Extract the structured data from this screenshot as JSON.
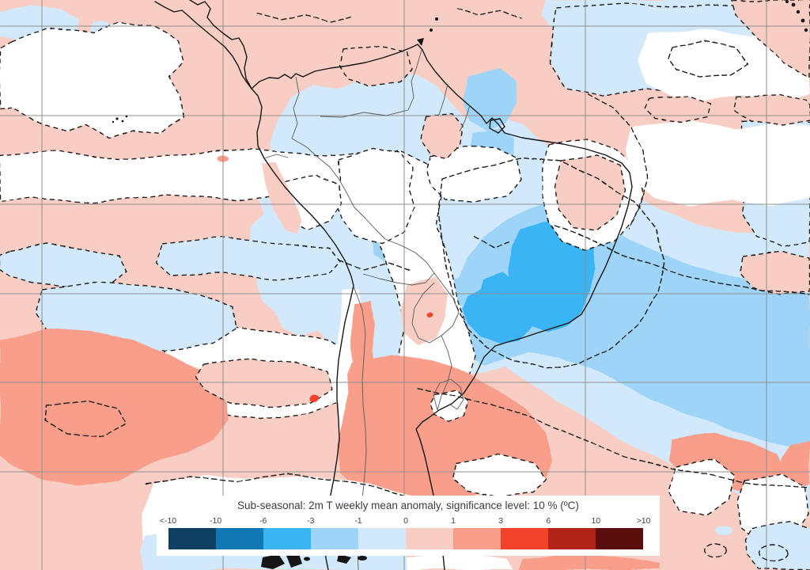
{
  "legend": {
    "title": "Sub-seasonal: 2m T weekly mean anomaly, significance level: 10 % (ºC)",
    "ticks": [
      "<-10",
      "-10",
      "-6",
      "-3",
      "-1",
      "0",
      "1",
      "3",
      "6",
      "10",
      ">10"
    ],
    "colors": [
      "#0f3f61",
      "#1178b4",
      "#3ab4f3",
      "#9ed4f7",
      "#d1e9fa",
      "#f8cdc4",
      "#f89e8b",
      "#f2432a",
      "#b22317",
      "#5a0f0e"
    ]
  },
  "chart_data": {
    "type": "heatmap",
    "title": "Sub-seasonal: 2m T weekly mean anomaly, significance level: 10 % (ºC)",
    "units": "ºC",
    "scale_breaks": [
      -10,
      -6,
      -3,
      -1,
      0,
      1,
      3,
      6,
      10
    ],
    "scale_labels": [
      "<-10",
      "-10",
      "-6",
      "-3",
      "-1",
      "0",
      "1",
      "3",
      "6",
      "10",
      ">10"
    ],
    "scale_colors": [
      "#0f3f61",
      "#1178b4",
      "#3ab4f3",
      "#9ed4f7",
      "#d1e9fa",
      "#f8cdc4",
      "#f89e8b",
      "#f2432a",
      "#b22317",
      "#5a0f0e"
    ],
    "legend_position": "bottom-center",
    "grid": true,
    "map_region": "South America and adjacent Pacific / Atlantic oceans",
    "regions": [
      {
        "area": "eastern Brazil interior (Bahia / Minas Gerais)",
        "anomaly_c": "-6 to -3"
      },
      {
        "area": "southeast Brazil coast and southwest Atlantic band",
        "anomaly_c": "-3 to -1"
      },
      {
        "area": "Amazon basin, Guyanas and tropical Atlantic",
        "anomaly_c": "-1 to 0"
      },
      {
        "area": "Argentina, Uruguay and Pampas",
        "anomaly_c": "1 to 3"
      },
      {
        "area": "southeast Pacific blob west of Chile",
        "anomaly_c": "1 to 3"
      },
      {
        "area": "most tropical Pacific, Caribbean and remaining ocean",
        "anomaly_c": "0 to 1"
      },
      {
        "area": "white patches (dashed outlines)",
        "anomaly_c": "not significant at 10 % level"
      }
    ]
  }
}
